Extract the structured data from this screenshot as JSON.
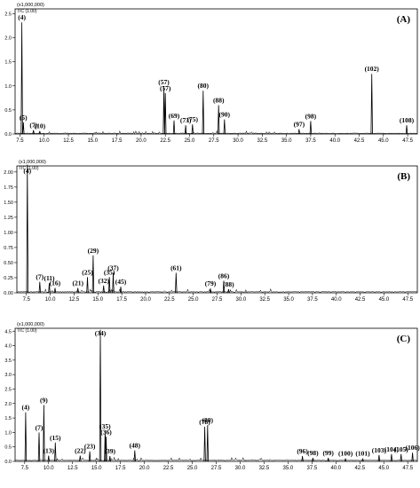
{
  "chart_data": [
    {
      "type": "line",
      "panel_label": "(A)",
      "scale_text": "(x1,000,000)",
      "tic_text": "TIC (1.00)",
      "xlim": [
        7.0,
        48.5
      ],
      "ylim": [
        0,
        2.6
      ],
      "x_ticks": [
        "7.5",
        "10.0",
        "12.5",
        "15.0",
        "17.5",
        "20.0",
        "22.5",
        "25.0",
        "27.5",
        "30.0",
        "32.5",
        "35.0",
        "37.5",
        "40.0",
        "42.5",
        "45.0",
        "47.5"
      ],
      "y_ticks": [
        "0.0",
        "0.5",
        "1.0",
        "1.5",
        "2.0",
        "2.5"
      ],
      "peaks": [
        {
          "label": "(4)",
          "x": 7.7,
          "y": 2.32
        },
        {
          "label": "(5)",
          "x": 7.85,
          "y": 0.24
        },
        {
          "label": "(7)",
          "x": 8.9,
          "y": 0.08
        },
        {
          "label": "(10)",
          "x": 9.55,
          "y": 0.06
        },
        {
          "label": "(57)",
          "x": 22.35,
          "y": 0.98
        },
        {
          "label": "(57)",
          "x": 22.5,
          "y": 0.85
        },
        {
          "label": "(69)",
          "x": 23.4,
          "y": 0.28
        },
        {
          "label": "(73)",
          "x": 24.6,
          "y": 0.18
        },
        {
          "label": "(75)",
          "x": 25.3,
          "y": 0.2
        },
        {
          "label": "(80)",
          "x": 26.4,
          "y": 0.9
        },
        {
          "label": "(88)",
          "x": 28.0,
          "y": 0.6
        },
        {
          "label": "(90)",
          "x": 28.6,
          "y": 0.3
        },
        {
          "label": "(97)",
          "x": 36.3,
          "y": 0.1
        },
        {
          "label": "(98)",
          "x": 37.5,
          "y": 0.27
        },
        {
          "label": "(102)",
          "x": 43.8,
          "y": 1.25
        },
        {
          "label": "(108)",
          "x": 47.4,
          "y": 0.18
        }
      ]
    },
    {
      "type": "line",
      "panel_label": "(B)",
      "scale_text": "(x1,000,000)",
      "tic_text": "TIC (1.00)",
      "xlim": [
        6.5,
        48.5
      ],
      "ylim": [
        0,
        2.1
      ],
      "x_ticks": [
        "7.5",
        "10.0",
        "12.5",
        "15.0",
        "17.5",
        "20.0",
        "22.5",
        "25.0",
        "27.5",
        "30.0",
        "32.5",
        "35.0",
        "37.5",
        "40.0",
        "42.5",
        "45.0",
        "47.5"
      ],
      "y_ticks": [
        "0.00",
        "0.25",
        "0.50",
        "0.75",
        "1.00",
        "1.25",
        "1.50",
        "1.75",
        "2.00"
      ],
      "peaks": [
        {
          "label": "(4)",
          "x": 7.6,
          "y": 2.12
        },
        {
          "label": "(7)",
          "x": 8.9,
          "y": 0.18
        },
        {
          "label": "(11)",
          "x": 9.9,
          "y": 0.16
        },
        {
          "label": "(16)",
          "x": 10.5,
          "y": 0.08
        },
        {
          "label": "(21)",
          "x": 12.9,
          "y": 0.08
        },
        {
          "label": "(25)",
          "x": 13.9,
          "y": 0.26
        },
        {
          "label": "(29)",
          "x": 14.5,
          "y": 0.62
        },
        {
          "label": "(32)",
          "x": 15.6,
          "y": 0.12
        },
        {
          "label": "(35)",
          "x": 16.2,
          "y": 0.26
        },
        {
          "label": "(37)",
          "x": 16.6,
          "y": 0.33
        },
        {
          "label": "(45)",
          "x": 17.4,
          "y": 0.1
        },
        {
          "label": "(61)",
          "x": 23.2,
          "y": 0.33
        },
        {
          "label": "(79)",
          "x": 26.8,
          "y": 0.07
        },
        {
          "label": "(86)",
          "x": 28.2,
          "y": 0.2
        },
        {
          "label": "(88)",
          "x": 28.7,
          "y": 0.06
        }
      ]
    },
    {
      "type": "line",
      "panel_label": "(C)",
      "scale_text": "(x1,000,000)",
      "tic_text": "TIC (1.00)",
      "xlim": [
        6.5,
        48.5
      ],
      "ylim": [
        0,
        4.6
      ],
      "x_ticks": [
        "7.5",
        "10.0",
        "12.5",
        "15.0",
        "17.5",
        "20.0",
        "22.5",
        "25.0",
        "27.5",
        "30.0",
        "32.5",
        "35.0",
        "37.5",
        "40.0",
        "42.5",
        "45.0",
        "47.5"
      ],
      "y_ticks": [
        "0.0",
        "0.5",
        "1.0",
        "1.5",
        "2.0",
        "2.5",
        "3.0",
        "3.5",
        "4.0",
        "4.5"
      ],
      "peaks": [
        {
          "label": "(4)",
          "x": 7.6,
          "y": 1.7
        },
        {
          "label": "(7)",
          "x": 9.0,
          "y": 1.0
        },
        {
          "label": "(9)",
          "x": 9.5,
          "y": 1.95
        },
        {
          "label": "(13)",
          "x": 10.0,
          "y": 0.2
        },
        {
          "label": "(15)",
          "x": 10.7,
          "y": 0.65
        },
        {
          "label": "(22)",
          "x": 13.3,
          "y": 0.2
        },
        {
          "label": "(23)",
          "x": 14.3,
          "y": 0.35
        },
        {
          "label": "(34)",
          "x": 15.4,
          "y": 4.55
        },
        {
          "label": "(35)",
          "x": 15.9,
          "y": 1.05
        },
        {
          "label": "(36)",
          "x": 16.0,
          "y": 0.85
        },
        {
          "label": "(39)",
          "x": 16.4,
          "y": 0.18
        },
        {
          "label": "(48)",
          "x": 19.0,
          "y": 0.38
        },
        {
          "label": "(78)",
          "x": 26.3,
          "y": 1.2
        },
        {
          "label": "(80)",
          "x": 26.6,
          "y": 1.25
        },
        {
          "label": "(96)",
          "x": 36.5,
          "y": 0.18
        },
        {
          "label": "(98)",
          "x": 37.6,
          "y": 0.12
        },
        {
          "label": "(99)",
          "x": 39.2,
          "y": 0.12
        },
        {
          "label": "(100)",
          "x": 41.0,
          "y": 0.1
        },
        {
          "label": "(101)",
          "x": 42.8,
          "y": 0.1
        },
        {
          "label": "(103)",
          "x": 44.5,
          "y": 0.22
        },
        {
          "label": "(104)",
          "x": 45.8,
          "y": 0.25
        },
        {
          "label": "(105)",
          "x": 46.8,
          "y": 0.25
        },
        {
          "label": "(106)",
          "x": 48.0,
          "y": 0.3
        }
      ]
    }
  ]
}
